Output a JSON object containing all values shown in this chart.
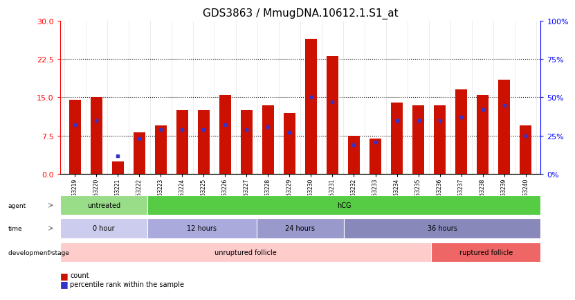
{
  "title": "GDS3863 / MmugDNA.10612.1.S1_at",
  "samples": [
    "GSM563219",
    "GSM563220",
    "GSM563221",
    "GSM563222",
    "GSM563223",
    "GSM563224",
    "GSM563225",
    "GSM563226",
    "GSM563227",
    "GSM563228",
    "GSM563229",
    "GSM563230",
    "GSM563231",
    "GSM563232",
    "GSM563233",
    "GSM563234",
    "GSM563235",
    "GSM563236",
    "GSM563237",
    "GSM563238",
    "GSM563239",
    "GSM563240"
  ],
  "counts": [
    14.5,
    15.0,
    2.5,
    8.2,
    9.5,
    12.5,
    12.5,
    15.5,
    12.5,
    13.5,
    12.0,
    26.5,
    23.0,
    7.5,
    7.0,
    14.0,
    13.5,
    13.5,
    16.5,
    15.5,
    18.5,
    9.5
  ],
  "percentiles_pct": [
    32,
    35,
    12,
    23,
    29,
    29,
    29,
    32,
    29,
    31,
    27,
    50,
    47,
    19,
    21,
    35,
    35,
    35,
    37,
    42,
    45,
    25
  ],
  "bar_color": "#CC1100",
  "dot_color": "#3333CC",
  "ylim_left": [
    0,
    30
  ],
  "ylim_right": [
    0,
    100
  ],
  "yticks_left": [
    0,
    7.5,
    15,
    22.5,
    30
  ],
  "yticks_right": [
    0,
    25,
    50,
    75,
    100
  ],
  "agent_groups": [
    {
      "label": "untreated",
      "start": 0,
      "end": 4,
      "color": "#99DD88"
    },
    {
      "label": "hCG",
      "start": 4,
      "end": 22,
      "color": "#55CC44"
    }
  ],
  "time_groups": [
    {
      "label": "0 hour",
      "start": 0,
      "end": 4,
      "color": "#CCCCEE"
    },
    {
      "label": "12 hours",
      "start": 4,
      "end": 9,
      "color": "#AAAADD"
    },
    {
      "label": "24 hours",
      "start": 9,
      "end": 13,
      "color": "#9999CC"
    },
    {
      "label": "36 hours",
      "start": 13,
      "end": 22,
      "color": "#8888BB"
    }
  ],
  "dev_groups": [
    {
      "label": "unruptured follicle",
      "start": 0,
      "end": 17,
      "color": "#FFCCCC"
    },
    {
      "label": "ruptured follicle",
      "start": 17,
      "end": 22,
      "color": "#EE6666"
    }
  ],
  "legend_count_color": "#CC1100",
  "legend_pct_color": "#3333CC",
  "background_color": "#ffffff",
  "title_fontsize": 11
}
